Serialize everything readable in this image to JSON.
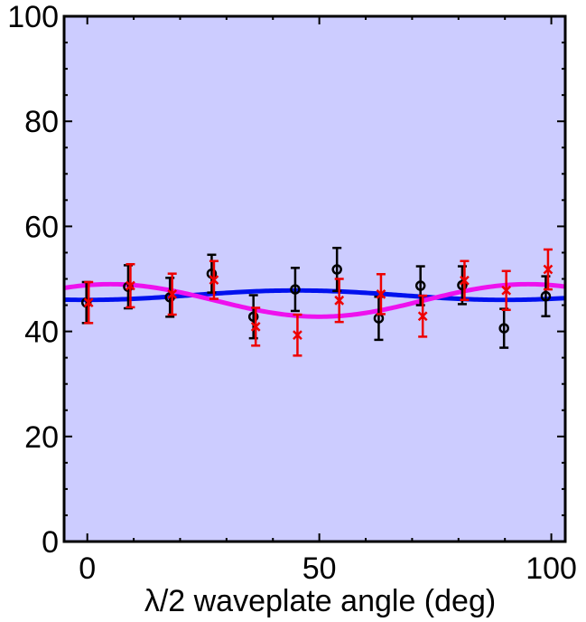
{
  "chart_data": {
    "type": "scatter",
    "title": "",
    "xlabel": "λ/2 waveplate angle (deg)",
    "ylabel": "",
    "xlim": [
      -5,
      103
    ],
    "ylim": [
      0,
      100
    ],
    "xticks": [
      0,
      50,
      100
    ],
    "yticks": [
      0,
      20,
      40,
      60,
      80,
      100
    ],
    "xtick_labels": [
      "0",
      "50",
      "100"
    ],
    "ytick_labels": [
      "0",
      "20",
      "40",
      "60",
      "80",
      "100"
    ],
    "grid": false,
    "legend": "none",
    "colors": {
      "background": "#ccccff",
      "black_series": "#000000",
      "red_series": "#ee0000",
      "blue_fit": "#0011ee",
      "magenta_fit": "#ee11ee"
    },
    "series": [
      {
        "marker": "circle",
        "color": "#000000",
        "x": [
          0,
          9,
          18,
          27,
          36,
          45,
          54,
          63,
          72,
          81,
          90,
          99
        ],
        "y": [
          45.5,
          48.5,
          46.5,
          51,
          42.8,
          48,
          51.8,
          42.5,
          48.7,
          48.8,
          40.6,
          46.7
        ],
        "err": [
          3.9,
          4.1,
          3.7,
          3.6,
          4.1,
          4.1,
          4.1,
          4.1,
          3.7,
          3.6,
          3.7,
          3.8
        ]
      },
      {
        "marker": "x",
        "color": "#ee0000",
        "x": [
          0,
          9,
          18,
          27,
          36,
          45,
          54,
          63,
          72,
          81,
          90,
          99
        ],
        "y": [
          45.5,
          48.7,
          47.1,
          49.8,
          40.9,
          39.3,
          45.9,
          47.1,
          42.9,
          49.7,
          47.8,
          51.8
        ],
        "err": [
          3.9,
          4.1,
          3.9,
          3.6,
          3.6,
          3.9,
          4.1,
          3.8,
          3.9,
          3.7,
          3.7,
          3.8
        ]
      },
      {
        "type": "line",
        "color": "#0011ee",
        "fit": {
          "offset": 46.9,
          "amplitude": -0.9,
          "period": 90,
          "phase_deg": 0
        },
        "x_range": [
          -5,
          103
        ]
      },
      {
        "type": "line",
        "color": "#ee11ee",
        "fit": {
          "offset": 45.9,
          "amplitude": 3.1,
          "period": 90,
          "phase_deg": 5
        },
        "x_range": [
          -5,
          103
        ]
      }
    ]
  }
}
